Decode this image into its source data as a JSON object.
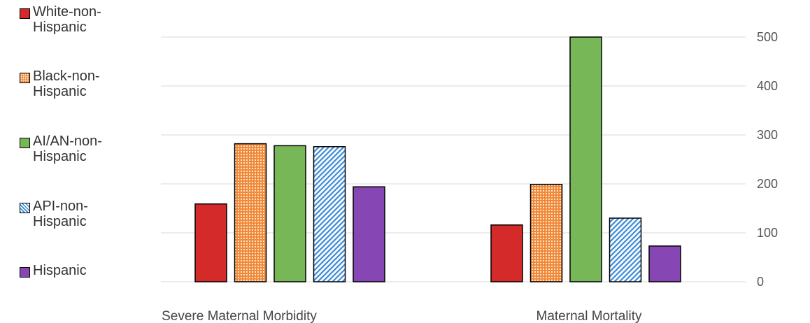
{
  "chart_data": {
    "type": "bar",
    "categories": [
      "Severe Maternal Morbidity",
      "Maternal Mortality"
    ],
    "series": [
      {
        "name": "White-non-Hispanic",
        "values": [
          159,
          116
        ],
        "color": "#d42a2a",
        "pattern": "solid"
      },
      {
        "name": "Black-non-Hispanic",
        "values": [
          282,
          199
        ],
        "color": "#f08a3a",
        "pattern": "dots"
      },
      {
        "name": "AI/AN-non-Hispanic",
        "values": [
          278,
          500
        ],
        "color": "#77b757",
        "pattern": "solid"
      },
      {
        "name": "API-non-Hispanic",
        "values": [
          276,
          130
        ],
        "color": "#3a8ad6",
        "pattern": "diagonal-stripes"
      },
      {
        "name": "Hispanic",
        "values": [
          194,
          73
        ],
        "color": "#8646b3",
        "pattern": "solid"
      }
    ],
    "yticks": [
      "0",
      "100",
      "200",
      "300",
      "400",
      "500"
    ],
    "ylim": [
      0,
      500
    ],
    "y_axis_side": "right",
    "grid": true,
    "legend_position": "left"
  }
}
